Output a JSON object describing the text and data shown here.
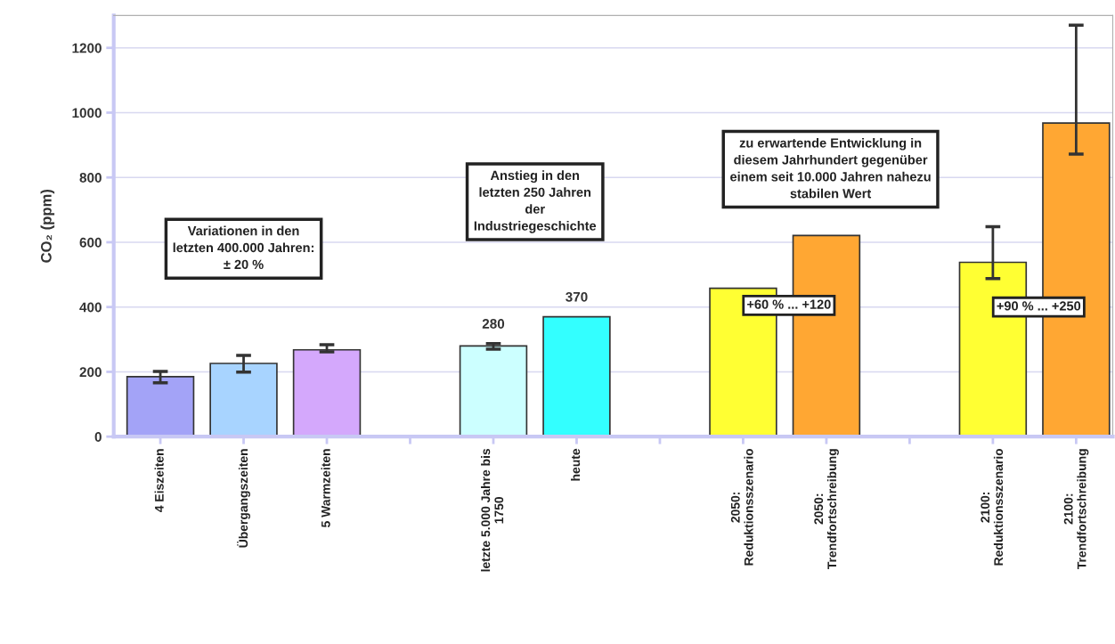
{
  "chart_data": {
    "type": "bar",
    "ylabel": "CO₂ (ppm)",
    "categories": [
      "4 Eiszeiten",
      "Übergangszeiten",
      "5 Warmzeiten",
      null,
      "letzte 5.000 Jahre bis\n1750",
      "heute",
      null,
      "2050:\nReduktionsszenario",
      "2050:\nTrendfortschreibung",
      null,
      "2100:\nReduktionsszenario",
      "2100:\nTrendfortschreibung"
    ],
    "values": [
      185,
      226,
      268,
      null,
      280,
      370,
      null,
      458,
      621,
      null,
      538,
      968
    ],
    "colors": [
      "#a3a3f7",
      "#a8d4ff",
      "#d4a8fc",
      null,
      "#ccffff",
      "#33ffff",
      null,
      "#ffff33",
      "#ffa733",
      null,
      "#ffff33",
      "#ffa733"
    ],
    "errors": [
      [
        166,
        201
      ],
      [
        199,
        251
      ],
      [
        262,
        284
      ],
      null,
      [
        270,
        287
      ],
      null,
      null,
      null,
      null,
      null,
      [
        488,
        648
      ],
      [
        872,
        1270
      ]
    ],
    "value_labels": [
      null,
      null,
      null,
      null,
      "280",
      "370",
      null,
      null,
      null,
      null,
      null,
      null
    ],
    "ylim": [
      0,
      1300
    ],
    "yticks": [
      0,
      200,
      400,
      600,
      800,
      1000,
      1200
    ],
    "grid": "y",
    "annotations": [
      "Variationen in den\nletzten 400.000 Jahren:\n± 20 %",
      "Anstieg in den\nletzten 250 Jahren\nder\nIndustriegeschichte",
      "zu erwartende Entwicklung in\ndiesem Jahrhundert gegenüber\neinem seit 10.000 Jahren nahezu\nstabilen Wert",
      "+60 % ... +120",
      "+90 % ... +250"
    ]
  }
}
